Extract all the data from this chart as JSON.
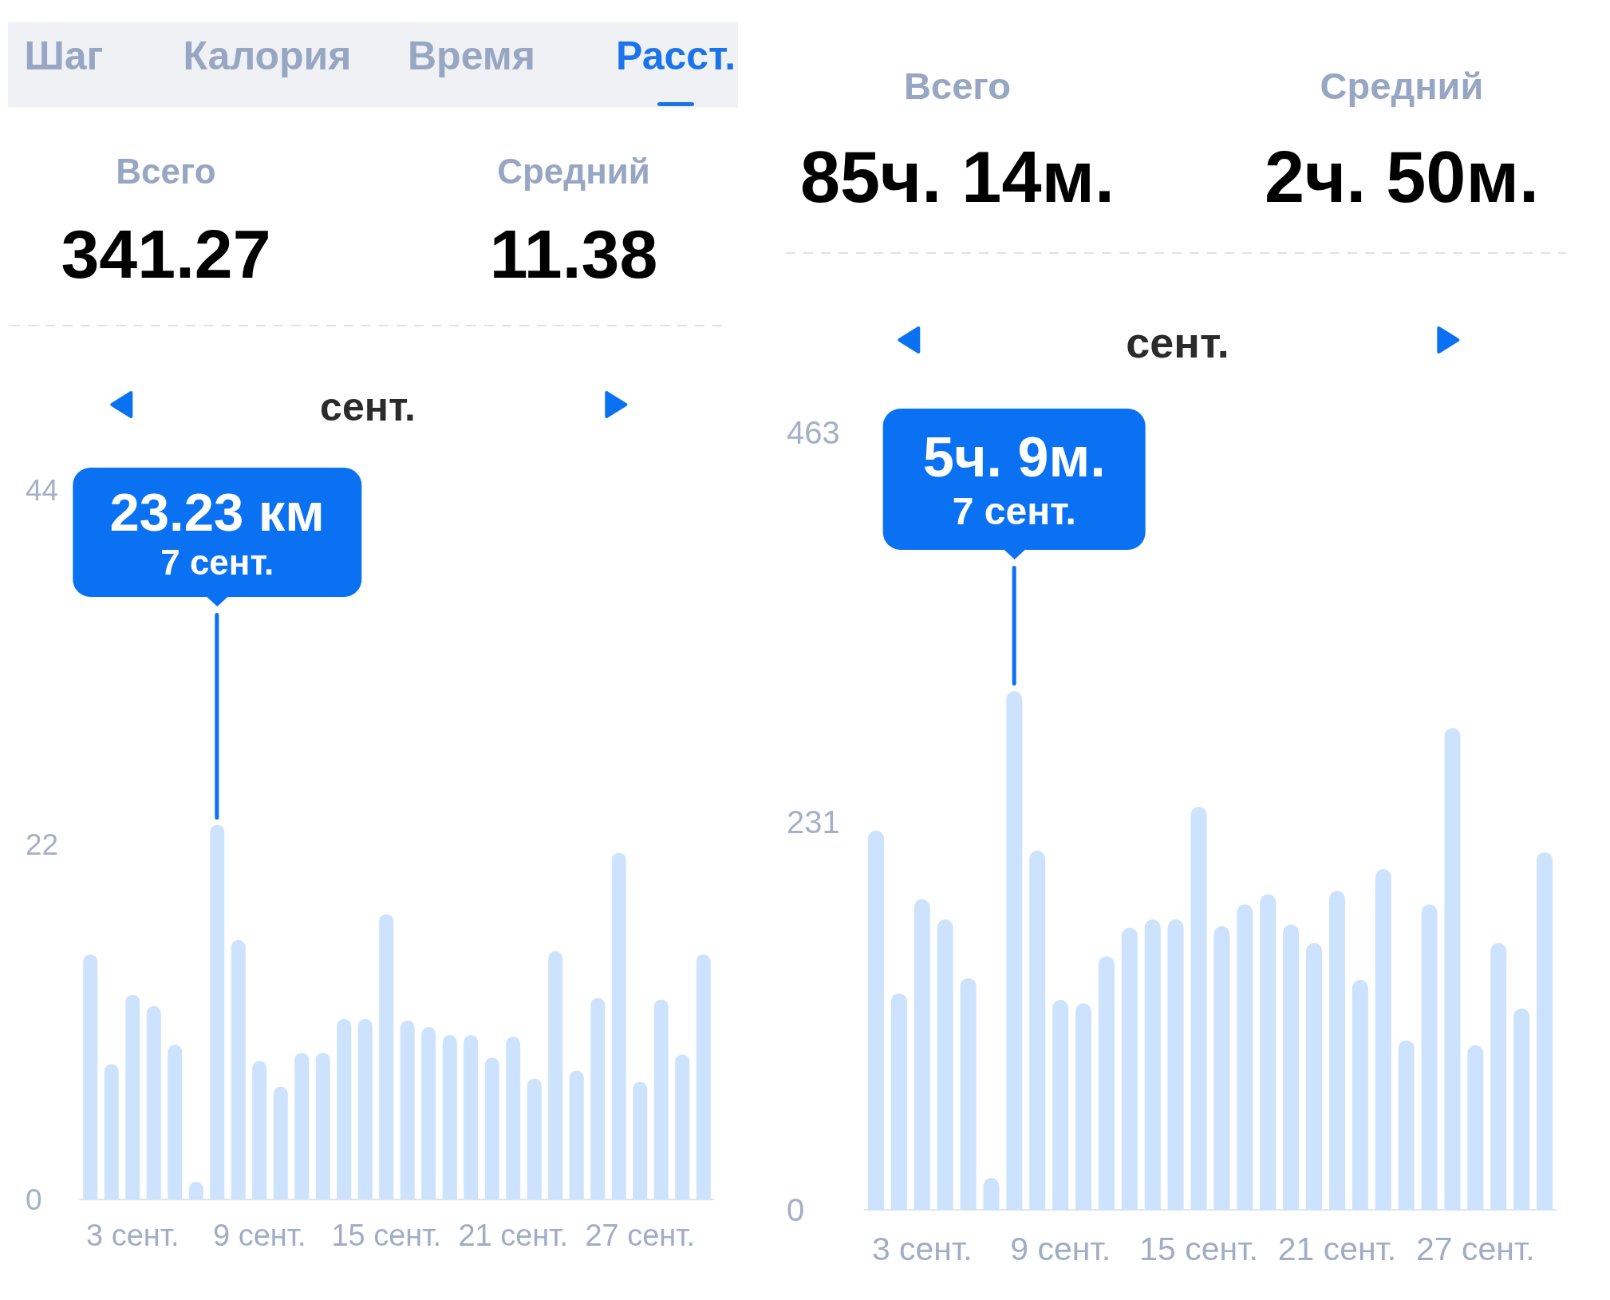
{
  "chart_data": [
    {
      "type": "other",
      "categories": [
        "Шаг",
        "Калория",
        "Время",
        "Расст."
      ],
      "colors": [
        "#97a6c2",
        "#97a6c2",
        "#97a6c2",
        "#1c74e9"
      ]
    },
    {
      "type": "other",
      "categories": [
        "Всего",
        "Средний"
      ],
      "annotations": [
        "341.27",
        "11.38"
      ]
    },
    {
      "type": "bar",
      "title": "сент.",
      "categories": [
        null,
        null,
        "3 сент.",
        null,
        null,
        null,
        null,
        null,
        "9 сент.",
        null,
        null,
        null,
        null,
        null,
        "15 сент.",
        null,
        null,
        null,
        null,
        null,
        "21 сент.",
        null,
        null,
        null,
        null,
        null,
        "27 сент.",
        null,
        null,
        null
      ],
      "values": [
        15.2,
        8.4,
        12.7,
        12,
        9.6,
        1.1,
        23.23,
        16.1,
        8.6,
        7,
        9.1,
        9.1,
        11.2,
        11.2,
        17.7,
        11.1,
        10.7,
        10.2,
        10.2,
        8.8,
        10.1,
        7.5,
        15.4,
        8,
        12.5,
        21.5,
        7.3,
        12.4,
        9,
        15.2
      ],
      "color": "#cde2fc",
      "ylim": [
        0,
        44
      ],
      "yticks": [
        0,
        22,
        44
      ],
      "annotations": [
        "23.23 км",
        "7 сент."
      ]
    },
    {
      "type": "other",
      "categories": [
        "Всего",
        "Средний"
      ],
      "annotations": [
        "85ч. 14м.",
        "2ч. 50м."
      ]
    },
    {
      "type": "bar",
      "title": "сент.",
      "categories": [
        null,
        null,
        "3 сент.",
        null,
        null,
        null,
        null,
        null,
        "9 сент.",
        null,
        null,
        null,
        null,
        null,
        "15 сент.",
        null,
        null,
        null,
        null,
        null,
        "21 сент.",
        null,
        null,
        null,
        null,
        null,
        "27 сент.",
        null,
        null,
        null
      ],
      "values": [
        226,
        129,
        185,
        173,
        138,
        19,
        309,
        214,
        125,
        123,
        151,
        168,
        173,
        173,
        240,
        169,
        182,
        188,
        170,
        159,
        190,
        137,
        203,
        101,
        182,
        287,
        98,
        159,
        120,
        213
      ],
      "color": "#cde2fc",
      "ylim": [
        0,
        463
      ],
      "yticks": [
        0,
        231,
        463
      ],
      "annotations": [
        "5ч. 9м.",
        "7 сент."
      ]
    }
  ]
}
